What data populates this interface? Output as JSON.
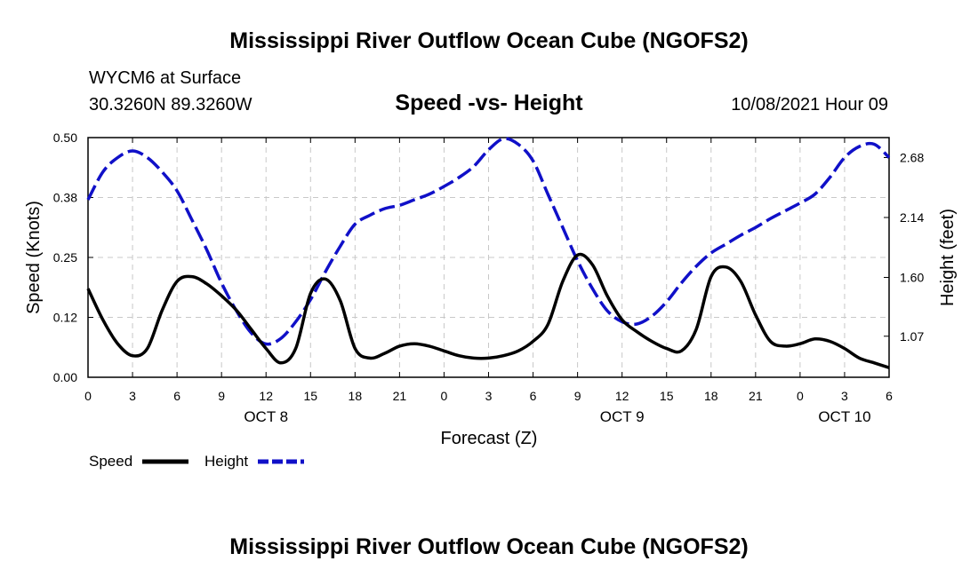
{
  "page": {
    "title_top": "Mississippi River Outflow Ocean Cube (NGOFS2)",
    "title_bottom": "Mississippi River Outflow Ocean Cube (NGOFS2)",
    "station": "WYCM6 at Surface",
    "coords": "30.3260N  89.3260W",
    "datetime": "10/08/2021 Hour 09"
  },
  "colors": {
    "speed": "#000000",
    "height": "#1010c8",
    "grid": "#c8c8c8"
  },
  "chart_data": {
    "type": "line",
    "title": "Speed -vs- Height",
    "xlabel": "Forecast (Z)",
    "ylabel": "Speed (Knots)",
    "ylabel_right": "Height (feet)",
    "xlim": [
      0,
      54
    ],
    "ylim": [
      0,
      0.5
    ],
    "ylim_right": [
      0.7,
      2.86
    ],
    "x_tick_values": [
      0,
      3,
      6,
      9,
      12,
      15,
      18,
      21,
      24,
      27,
      30,
      33,
      36,
      39,
      42,
      45,
      48,
      51,
      54
    ],
    "x_tick_labels": [
      "0",
      "3",
      "6",
      "9",
      "12",
      "15",
      "18",
      "21",
      "0",
      "3",
      "6",
      "9",
      "12",
      "15",
      "18",
      "21",
      "0",
      "3",
      "6"
    ],
    "day_labels": [
      {
        "x": 12,
        "label": "OCT 8"
      },
      {
        "x": 36,
        "label": "OCT 9"
      },
      {
        "x": 51,
        "label": "OCT 10"
      }
    ],
    "y_ticks_left": [
      0,
      0.125,
      0.25,
      0.375,
      0.5
    ],
    "y_tick_labels_left": [
      "0.00",
      "0.12",
      "0.25",
      "0.38",
      "0.50"
    ],
    "y_ticks_right": [
      1.07,
      1.6,
      2.14,
      2.68
    ],
    "y_tick_labels_right": [
      "1.07",
      "1.60",
      "2.14",
      "2.68"
    ],
    "grid": true,
    "series": [
      {
        "name": "Speed",
        "axis": "left",
        "style": "solid",
        "x": [
          0,
          1,
          2,
          3,
          4,
          5,
          6,
          7,
          8,
          9,
          10,
          11,
          12,
          13,
          14,
          15,
          16,
          17,
          18,
          19,
          20,
          21,
          22,
          23,
          24,
          25,
          26,
          27,
          28,
          29,
          30,
          31,
          32,
          33,
          34,
          35,
          36,
          37,
          38,
          39,
          40,
          41,
          42,
          43,
          44,
          45,
          46,
          47,
          48,
          49,
          50,
          51,
          52,
          53,
          54
        ],
        "values": [
          0.185,
          0.12,
          0.07,
          0.045,
          0.06,
          0.14,
          0.2,
          0.21,
          0.195,
          0.17,
          0.14,
          0.1,
          0.06,
          0.03,
          0.06,
          0.175,
          0.205,
          0.16,
          0.06,
          0.04,
          0.05,
          0.065,
          0.07,
          0.065,
          0.055,
          0.045,
          0.04,
          0.04,
          0.045,
          0.055,
          0.075,
          0.11,
          0.2,
          0.255,
          0.235,
          0.17,
          0.12,
          0.095,
          0.075,
          0.06,
          0.055,
          0.1,
          0.21,
          0.23,
          0.2,
          0.13,
          0.075,
          0.065,
          0.07,
          0.08,
          0.075,
          0.06,
          0.04,
          0.03,
          0.02
        ]
      },
      {
        "name": "Height",
        "axis": "right",
        "style": "dashed",
        "x": [
          0,
          1,
          2,
          3,
          4,
          5,
          6,
          7,
          8,
          9,
          10,
          11,
          12,
          13,
          14,
          15,
          16,
          17,
          18,
          19,
          20,
          21,
          22,
          23,
          24,
          25,
          26,
          27,
          28,
          29,
          30,
          31,
          32,
          33,
          34,
          35,
          36,
          37,
          38,
          39,
          40,
          41,
          42,
          43,
          44,
          45,
          46,
          47,
          48,
          49,
          50,
          51,
          52,
          53,
          54
        ],
        "values": [
          2.3,
          2.55,
          2.68,
          2.74,
          2.68,
          2.55,
          2.38,
          2.12,
          1.85,
          1.55,
          1.3,
          1.1,
          1.0,
          1.05,
          1.2,
          1.4,
          1.65,
          1.88,
          2.08,
          2.16,
          2.22,
          2.25,
          2.3,
          2.35,
          2.42,
          2.5,
          2.6,
          2.75,
          2.85,
          2.8,
          2.65,
          2.35,
          2.05,
          1.75,
          1.5,
          1.3,
          1.2,
          1.18,
          1.25,
          1.38,
          1.55,
          1.7,
          1.82,
          1.9,
          1.98,
          2.05,
          2.13,
          2.2,
          2.27,
          2.35,
          2.5,
          2.68,
          2.78,
          2.8,
          2.68
        ]
      }
    ],
    "legend": [
      {
        "label": "Speed",
        "style": "solid"
      },
      {
        "label": "Height",
        "style": "dashed"
      }
    ]
  }
}
